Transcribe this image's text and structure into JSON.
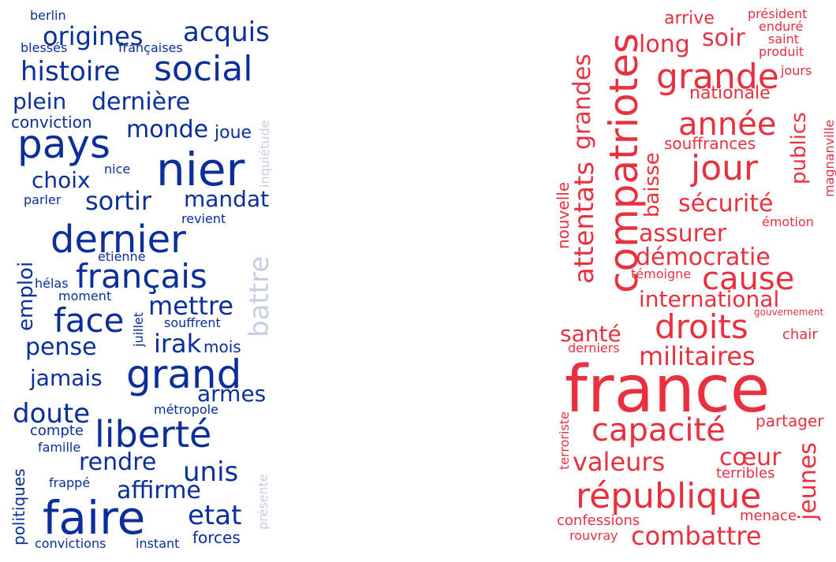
{
  "colors": {
    "left_main": "#0a2f9a",
    "left_faded": "#c5cde3",
    "right_main": "#e8303f"
  },
  "left_words": {
    "berlin": "berlin",
    "origines": "origines",
    "acquis": "acquis",
    "blesses": "blessés",
    "francaises": "françaises",
    "histoire": "histoire",
    "social": "social",
    "plein": "plein",
    "derniere": "dernière",
    "conviction": "conviction",
    "pays": "pays",
    "monde": "monde",
    "joue": "joue",
    "inquietude": "inquiétude",
    "nier": "nier",
    "choix": "choix",
    "nice": "nice",
    "sortir": "sortir",
    "mandat": "mandat",
    "parler": "parler",
    "revient": "revient",
    "dernier": "dernier",
    "battre": "battre",
    "emploi": "emploi",
    "etienne": "etienne",
    "francais": "français",
    "helas": "hélas",
    "moment": "moment",
    "mettre": "mettre",
    "face": "face",
    "juillet": "juillet",
    "souffrent": "souffrent",
    "irak": "irak",
    "pense": "pense",
    "mois": "mois",
    "grand": "grand",
    "jamais": "jamais",
    "armes": "armes",
    "doute": "doute",
    "metropole": "métropole",
    "liberte": "liberté",
    "compte": "compte",
    "famille": "famille",
    "rendre": "rendre",
    "unis": "unis",
    "politiques": "politiques",
    "frappe": "frappé",
    "affirme": "affirme",
    "presente": "présente",
    "faire": "faire",
    "etat": "etat",
    "forces": "forces",
    "convictions": "convictions",
    "instant": "instant"
  },
  "right_words": {
    "arrive": "arrive",
    "president": "président",
    "endure": "enduré",
    "saint": "saint",
    "produit": "produit",
    "compatriotes": "compatriotes",
    "long": "long",
    "soir": "soir",
    "grandes": "grandes",
    "grande": "grande",
    "jours": "jours",
    "nationale": "nationale",
    "publics": "publics",
    "magnanville": "magnanville",
    "annee": "année",
    "souffrances": "souffrances",
    "jour": "jour",
    "nouvelle": "nouvelle",
    "attentats": "attentats",
    "baisse": "baisse",
    "securite": "sécurité",
    "emotion": "émotion",
    "assurer": "assurer",
    "democratie": "démocratie",
    "temoigne": "témoigne",
    "cause": "cause",
    "international": "international",
    "gouvernement": "gouvernement",
    "droits": "droits",
    "sante": "santé",
    "chair": "chair",
    "derniers": "derniers",
    "militaires": "militaires",
    "france": "france",
    "terroriste": "terroriste",
    "partager": "partager",
    "capacite": "capacité",
    "jeunes": "jeunes",
    "valeurs": "valeurs",
    "coeur": "cœur",
    "terribles": "terribles",
    "republique": "république",
    "confessions": "confessions",
    "menace": "menace",
    "rouvray": "rouvray",
    "combattre": "combattre"
  }
}
